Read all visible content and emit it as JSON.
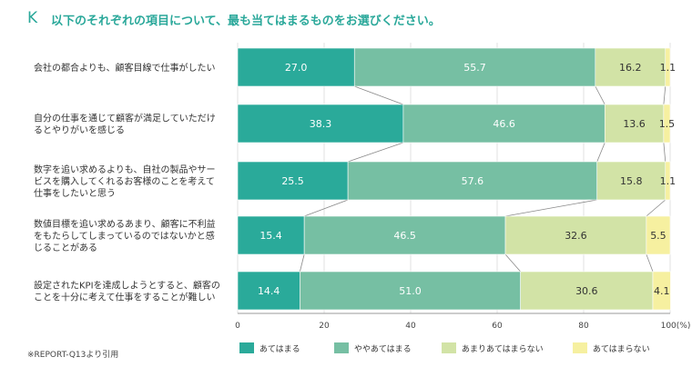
{
  "header": {
    "letter": "K",
    "question": "以下のそれぞれの項目について、最も当てはまるものをお選びください。"
  },
  "chart_data": {
    "type": "bar",
    "orientation": "horizontal-stacked-100",
    "categories": [
      [
        "会社の都合よりも、顧客目線で仕事がしたい"
      ],
      [
        "自分の仕事を通じて顧客が満足していただけ",
        "るとやりがいを感じる"
      ],
      [
        "数字を追い求めるよりも、自社の製品やサー",
        "ビスを購入してくれるお客様のことを考えて",
        "仕事をしたいと思う"
      ],
      [
        "数値目標を追い求めるあまり、顧客に不利益",
        "をもたらしてしまっているのではないかと感",
        "じることがある"
      ],
      [
        "設定されたKPIを達成しようとすると、顧客の",
        "ことを十分に考えて仕事をすることが難しい"
      ]
    ],
    "series": [
      {
        "name": "あてはまる",
        "color": "#2aaa9a",
        "values": [
          27.0,
          38.3,
          25.5,
          15.4,
          14.4
        ],
        "labels": [
          "27.0",
          "38.3",
          "25.5",
          "15.4",
          "14.4"
        ]
      },
      {
        "name": "ややあてはまる",
        "color": "#76bfa3",
        "values": [
          55.7,
          46.6,
          57.6,
          46.5,
          51.0
        ],
        "labels": [
          "55.7",
          "46.6",
          "57.6",
          "46.5",
          "51.0"
        ]
      },
      {
        "name": "あまりあてはまらない",
        "color": "#d2e3a6",
        "values": [
          16.2,
          13.6,
          15.8,
          32.6,
          30.6
        ],
        "labels": [
          "16.2",
          "13.6",
          "15.8",
          "32.6",
          "30.6"
        ]
      },
      {
        "name": "あてはまらない",
        "color": "#f6f0a0",
        "values": [
          1.1,
          1.5,
          1.1,
          5.5,
          4.1
        ],
        "labels": [
          "1.1",
          "1.5",
          "1.1",
          "5.5",
          "4.1"
        ]
      }
    ],
    "xlim": [
      0,
      100
    ],
    "xticks": [
      "0",
      "20",
      "40",
      "60",
      "80",
      "100(%)"
    ],
    "legend_position": "bottom",
    "note": "※REPORT-Q13より引用"
  }
}
